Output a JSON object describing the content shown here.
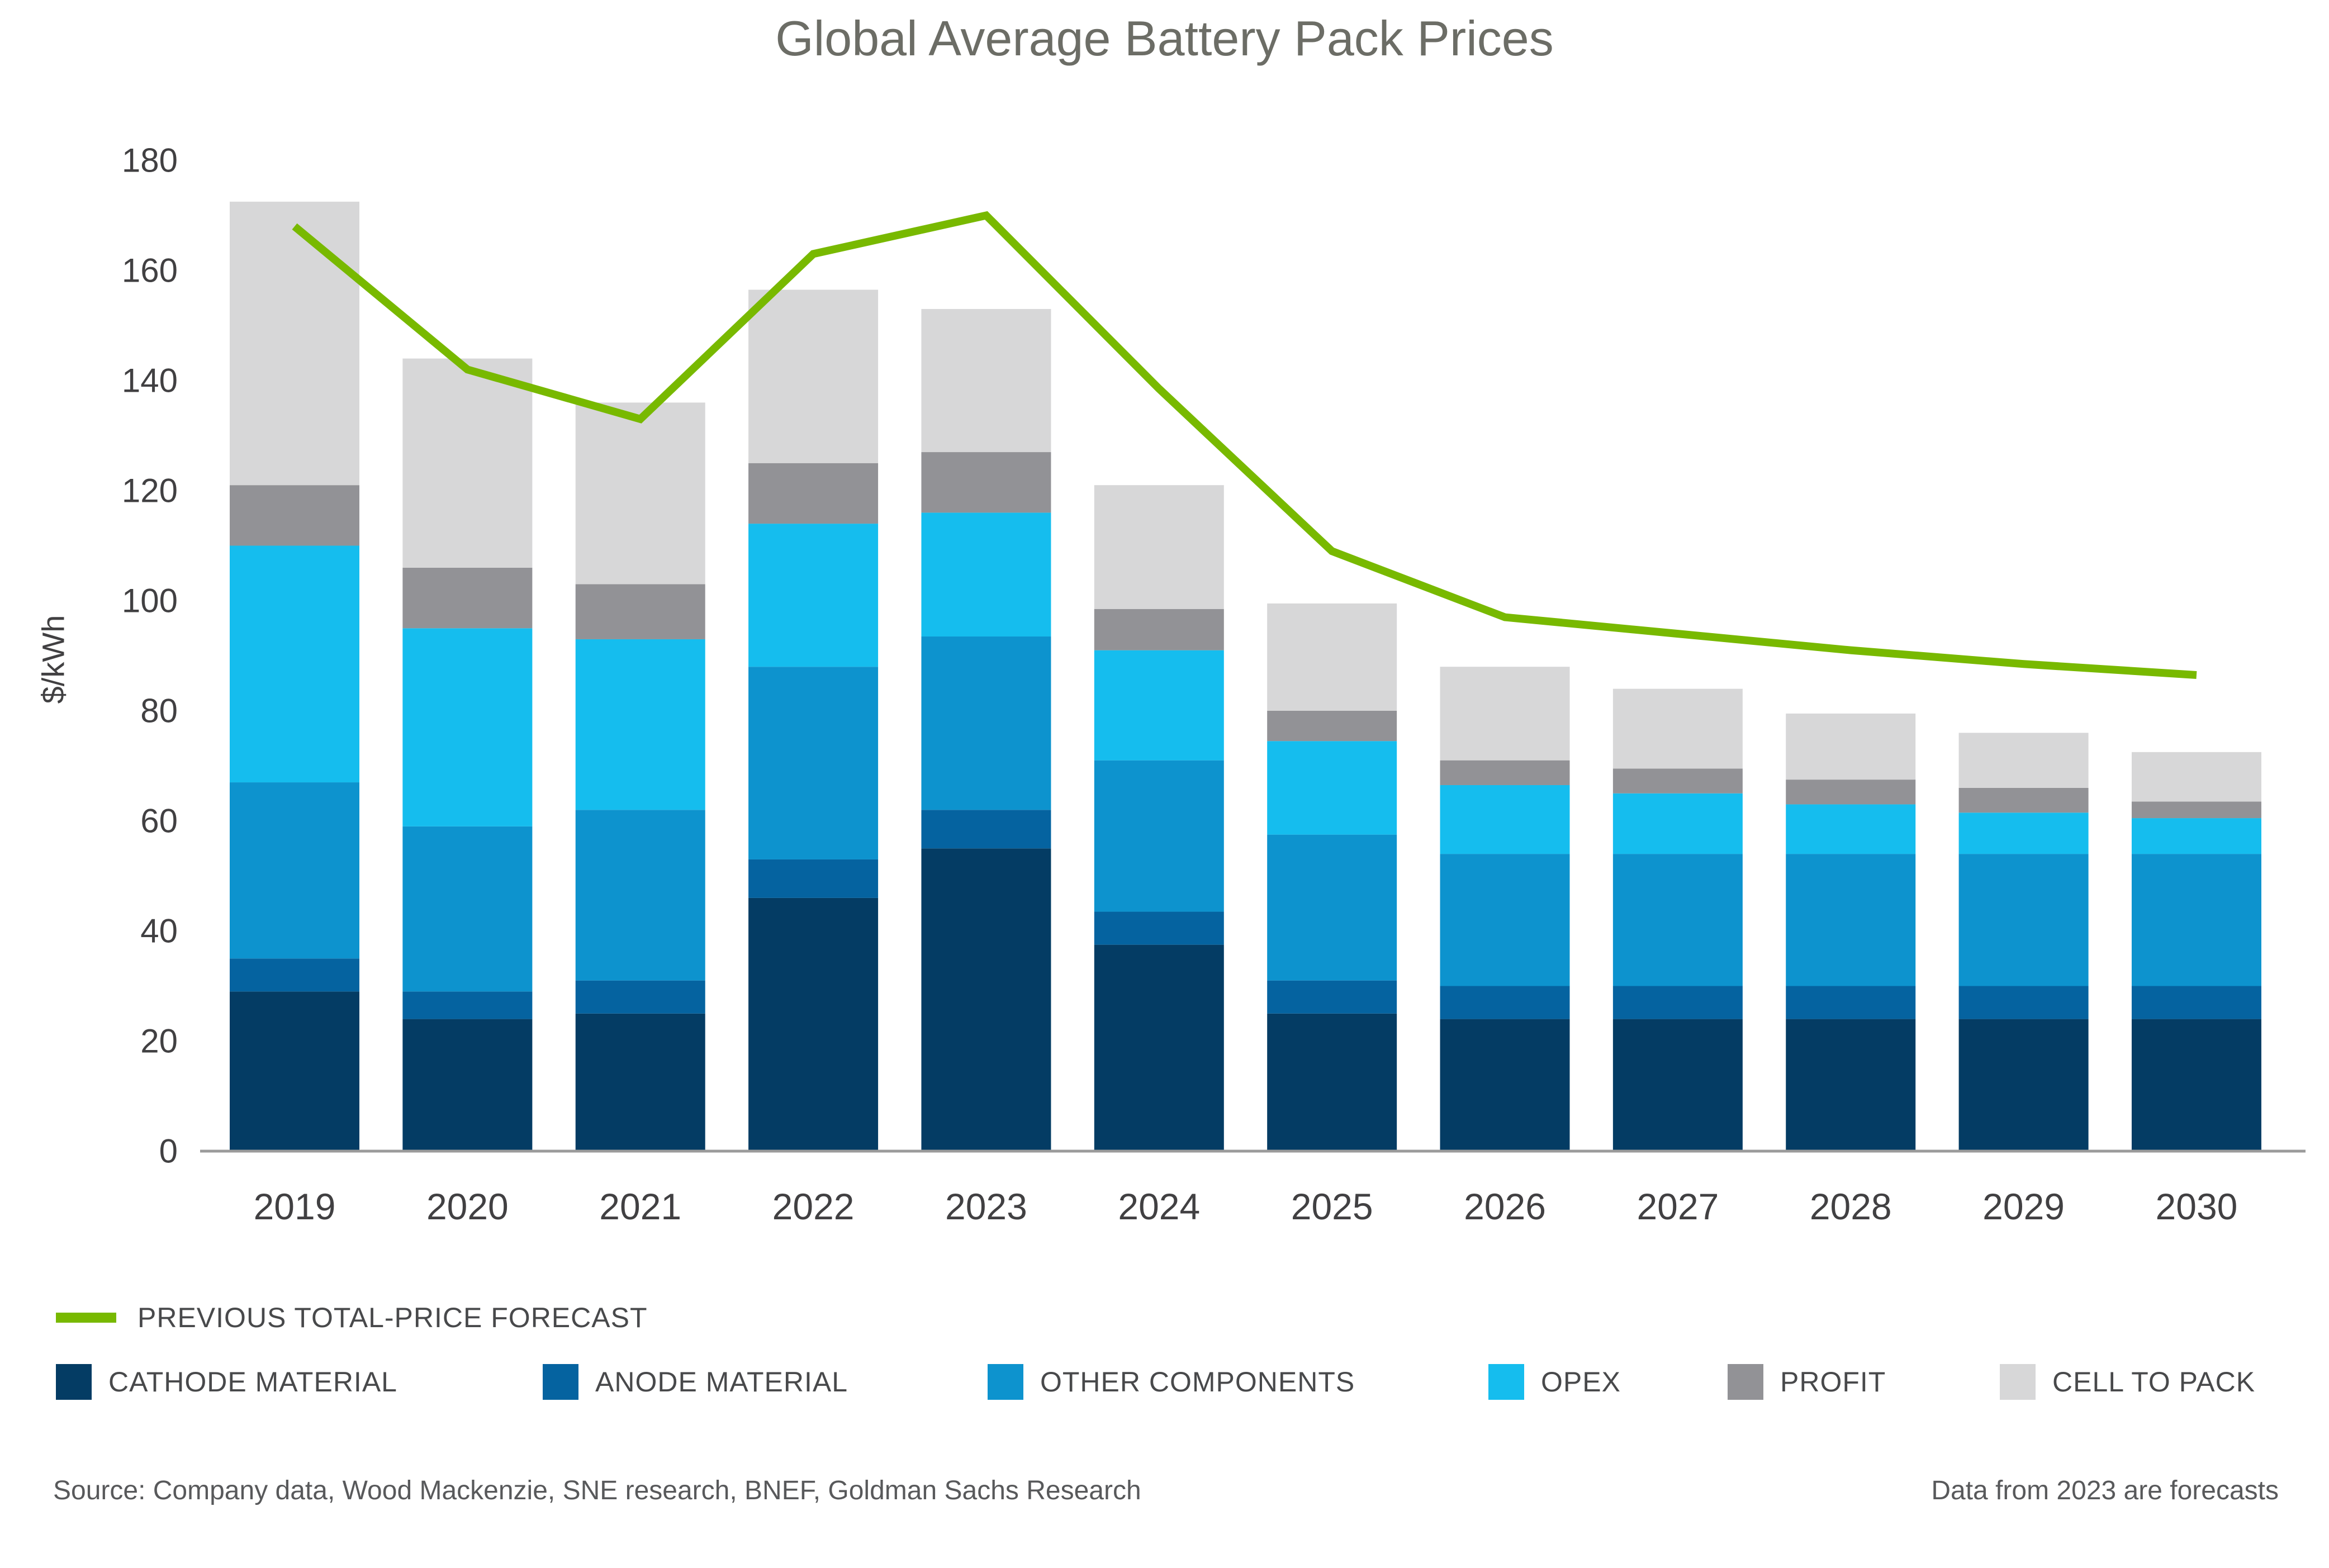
{
  "title": "Global Average Battery Pack Prices",
  "chart_data": {
    "type": "bar",
    "stacked": true,
    "title": "Global Average Battery Pack Prices",
    "xlabel": "",
    "ylabel": "$/kWh",
    "ylim": [
      0,
      180
    ],
    "ytick_step": 20,
    "grid": false,
    "legend_position": "bottom-left",
    "categories": [
      "2019",
      "2020",
      "2021",
      "2022",
      "2023",
      "2024",
      "2025",
      "2026",
      "2027",
      "2028",
      "2029",
      "2030"
    ],
    "series": [
      {
        "name": "CATHODE MATERIAL",
        "color": "#043c64",
        "values": [
          29,
          24,
          25,
          46,
          55,
          37.5,
          25,
          24,
          24,
          24,
          24,
          24
        ]
      },
      {
        "name": "ANODE MATERIAL",
        "color": "#0563a0",
        "values": [
          6,
          5,
          6,
          7,
          7,
          6,
          6,
          6,
          6,
          6,
          6,
          6
        ]
      },
      {
        "name": "OTHER COMPONENTS",
        "color": "#0d93ce",
        "values": [
          32,
          30,
          31,
          35,
          31.5,
          27.5,
          26.5,
          24,
          24,
          24,
          24,
          24
        ]
      },
      {
        "name": "OPEX",
        "color": "#15bdee",
        "values": [
          43,
          36,
          31,
          26,
          22.5,
          20,
          17,
          12.5,
          11,
          9,
          7.5,
          6.5
        ]
      },
      {
        "name": "PROFIT",
        "color": "#929296",
        "values": [
          11,
          11,
          10,
          11,
          11,
          7.5,
          5.5,
          4.5,
          4.5,
          4.5,
          4.5,
          3
        ]
      },
      {
        "name": "CELL TO PACK",
        "color": "#d7d7d8",
        "values": [
          51.5,
          38,
          33,
          31.5,
          26,
          22.5,
          19.5,
          17,
          14.5,
          12,
          10,
          9
        ]
      }
    ],
    "totals": [
      172.5,
      144,
      136,
      156.5,
      153,
      121,
      99.5,
      88,
      84,
      79.5,
      76,
      72.5
    ],
    "line_series": {
      "name": "PREVIOUS TOTAL-PRICE FORECAST",
      "color": "#78b900",
      "values": [
        168,
        142,
        133,
        163,
        170,
        138.5,
        109,
        97,
        94,
        91,
        88.5,
        86.5
      ]
    },
    "yticks": [
      0,
      20,
      40,
      60,
      80,
      100,
      120,
      140,
      160,
      180
    ]
  },
  "colors": {
    "axis_line": "#9b9b9b",
    "tick_text": "#414042",
    "title_text": "#6c6d66",
    "legend_text": "#48494b",
    "footer_text": "#58595b"
  },
  "footer": {
    "source": "Source: Company data, Wood Mackenzie, SNE research, BNEF, Goldman Sachs Research",
    "note": "Data from 2023 are forecasts"
  }
}
